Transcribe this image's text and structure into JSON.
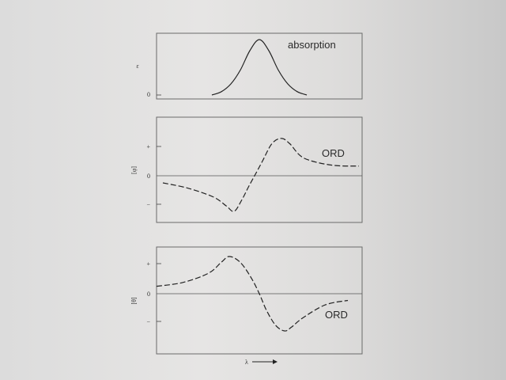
{
  "chart_data": [
    {
      "type": "line",
      "ylabel": "ε",
      "yticks": [
        "0"
      ],
      "annotation": "absorption",
      "series": [
        {
          "style": "solid",
          "x": [
            -1.5,
            -1.2,
            -0.9,
            -0.6,
            -0.3,
            0,
            0.3,
            0.6,
            0.9,
            1.2,
            1.5
          ],
          "values": [
            0,
            0.06,
            0.2,
            0.45,
            0.8,
            1,
            0.8,
            0.45,
            0.2,
            0.06,
            0
          ]
        }
      ]
    },
    {
      "type": "line",
      "ylabel": "[φ]",
      "yticks": [
        "+",
        "0",
        "−"
      ],
      "annotation": "ORD",
      "series": [
        {
          "style": "dashed",
          "x": [
            -3.5,
            -2.5,
            -1.5,
            -1.0,
            -0.7,
            -0.45,
            -0.2,
            0,
            0.2,
            0.45,
            0.7,
            1.0,
            1.5,
            2.5,
            3.5
          ],
          "values": [
            -0.2,
            -0.35,
            -0.6,
            -0.85,
            -1.0,
            -0.7,
            -0.3,
            0,
            0.4,
            0.9,
            1.05,
            0.9,
            0.5,
            0.3,
            0.27
          ]
        }
      ]
    },
    {
      "type": "line",
      "ylabel": "[θ]",
      "yticks": [
        "+",
        "0",
        "−"
      ],
      "annotation": "ORD",
      "series": [
        {
          "style": "dashed",
          "x": [
            -3.5,
            -2.5,
            -1.5,
            -1.0,
            -0.7,
            -0.45,
            -0.2,
            0,
            0.2,
            0.45,
            0.7,
            1.0,
            1.5,
            2.5,
            3.5
          ],
          "values": [
            0.2,
            0.3,
            0.55,
            0.85,
            1.0,
            0.85,
            0.45,
            0,
            -0.45,
            -0.85,
            -1.0,
            -0.9,
            -0.65,
            -0.3,
            -0.18
          ]
        }
      ]
    }
  ],
  "xaxis_label": "λ"
}
